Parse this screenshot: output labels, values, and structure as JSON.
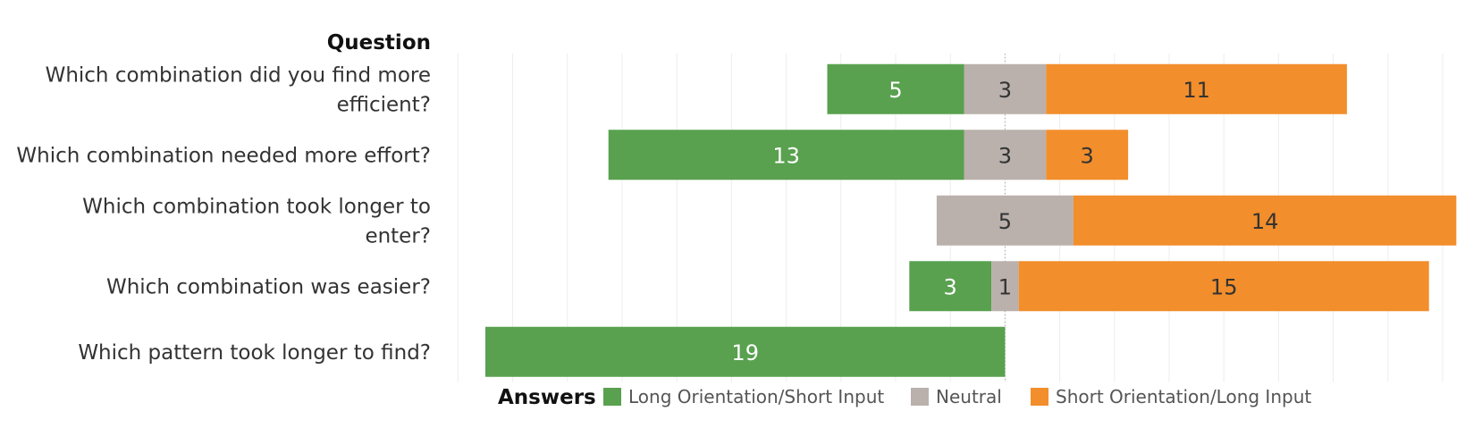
{
  "chart_data": {
    "type": "bar",
    "orientation": "horizontal",
    "stacked": "diverging",
    "row_header": "Question",
    "categories": [
      [
        "Which combination did you find more",
        "efficient?"
      ],
      [
        "Which combination needed more effort?"
      ],
      [
        "Which combination took longer to",
        "enter?"
      ],
      [
        "Which combination was easier?"
      ],
      [
        "Which pattern took longer to find?"
      ]
    ],
    "series": [
      {
        "name": "Long Orientation/Short Input",
        "color": "#59a14f",
        "label_color": "#ffffff",
        "values": [
          5,
          13,
          0,
          3,
          19
        ]
      },
      {
        "name": "Neutral",
        "color": "#bab0ac",
        "label_color": "#333333",
        "values": [
          3,
          3,
          5,
          1,
          0
        ]
      },
      {
        "name": "Short Orientation/Long Input",
        "color": "#f28e2b",
        "label_color": "#333333",
        "values": [
          11,
          3,
          14,
          15,
          0
        ]
      }
    ],
    "center": "neutral-midpoint",
    "xlim": [
      -19,
      21
    ],
    "grid": true,
    "legend": {
      "title": "Answers",
      "position": "bottom"
    }
  }
}
